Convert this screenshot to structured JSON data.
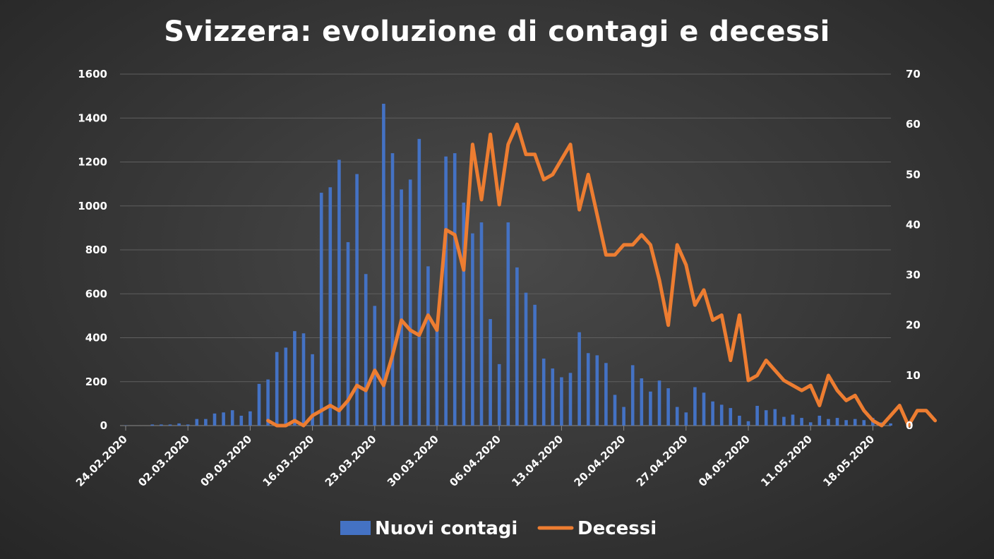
{
  "chart_data": {
    "type": "bar+line",
    "title": "Svizzera: evoluzione di contagi e decessi",
    "x_tick_labels": [
      "24.02.2020",
      "02.03.2020",
      "09.03.2020",
      "16.03.2020",
      "23.03.2020",
      "30.03.2020",
      "06.04.2020",
      "13.04.2020",
      "20.04.2020",
      "27.04.2020",
      "04.05.2020",
      "11.05.2020",
      "18.05.2020"
    ],
    "x_start": "24.02.2020",
    "y_left": {
      "ticks": [
        0,
        200,
        400,
        600,
        800,
        1000,
        1200,
        1400,
        1600
      ],
      "range": [
        0,
        1600
      ]
    },
    "y_right": {
      "ticks": [
        0,
        10,
        20,
        30,
        40,
        50,
        60,
        70
      ],
      "range": [
        0,
        70
      ]
    },
    "grid": true,
    "legend_position": "bottom",
    "series": [
      {
        "name": "Nuovi contagi",
        "type": "bar",
        "axis": "left",
        "color": "#4472c4",
        "values": [
          1,
          0,
          0,
          5,
          5,
          5,
          10,
          5,
          30,
          30,
          55,
          60,
          70,
          45,
          65,
          190,
          210,
          335,
          355,
          430,
          420,
          325,
          1060,
          1085,
          1210,
          835,
          1145,
          690,
          545,
          1465,
          1240,
          1075,
          1120,
          1305,
          725,
          435,
          1225,
          1240,
          1015,
          875,
          925,
          485,
          280,
          925,
          720,
          605,
          550,
          305,
          260,
          220,
          240,
          425,
          330,
          320,
          285,
          140,
          85,
          275,
          215,
          155,
          205,
          170,
          85,
          60,
          175,
          150,
          110,
          95,
          80,
          45,
          20,
          90,
          70,
          75,
          40,
          50,
          35,
          15,
          45,
          30,
          35,
          25,
          30,
          25,
          35,
          15,
          10
        ]
      },
      {
        "name": "Decessi",
        "type": "line",
        "axis": "right",
        "color": "#ed7d31",
        "start_day": 16,
        "values": [
          1,
          0,
          0,
          1,
          0,
          2,
          3,
          4,
          3,
          5,
          8,
          7,
          11,
          8,
          14,
          21,
          19,
          18,
          22,
          19,
          39,
          38,
          31,
          56,
          45,
          58,
          44,
          56,
          60,
          54,
          54,
          49,
          50,
          53,
          56,
          43,
          50,
          42,
          34,
          34,
          36,
          36,
          38,
          36,
          29,
          20,
          36,
          32,
          24,
          27,
          21,
          22,
          13,
          22,
          9,
          10,
          13,
          11,
          9,
          8,
          7,
          8,
          4,
          10,
          7,
          5,
          6,
          3,
          1,
          0,
          2,
          4,
          0,
          3,
          3,
          1
        ]
      }
    ]
  }
}
